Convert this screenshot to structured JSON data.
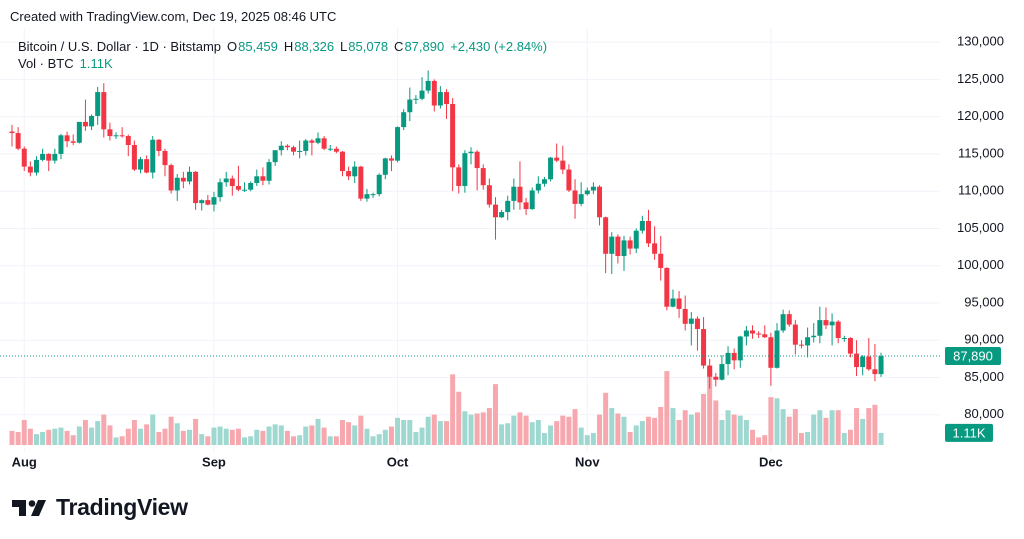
{
  "watermark": "Created with TradingView.com, Dec 19, 2025 08:46 UTC",
  "legend": {
    "symbol": "Bitcoin / U.S. Dollar · 1D · Bitstamp",
    "fields": [
      {
        "key": "O",
        "value": "85,459"
      },
      {
        "key": "H",
        "value": "88,326"
      },
      {
        "key": "L",
        "value": "85,078"
      },
      {
        "key": "C",
        "value": "87,890"
      }
    ],
    "change": "+2,430 (+2.84%)",
    "volume_label": "Vol · BTC",
    "volume_value": "1.11K"
  },
  "logo": "TradingView",
  "chart_data": {
    "type": "candlestick",
    "up_color": "#089981",
    "down_color": "#f23645",
    "volume_up_color": "#9fd8d0",
    "volume_down_color": "#f7a8af",
    "grid": true,
    "ylim": [
      75000,
      131900
    ],
    "yticks": [
      {
        "value": 130000,
        "label": "130,000"
      },
      {
        "value": 125000,
        "label": "125,000"
      },
      {
        "value": 120000,
        "label": "120,000"
      },
      {
        "value": 115000,
        "label": "115,000"
      },
      {
        "value": 110000,
        "label": "110,000"
      },
      {
        "value": 105000,
        "label": "105,000"
      },
      {
        "value": 100000,
        "label": "100,000"
      },
      {
        "value": 95000,
        "label": "95,000"
      },
      {
        "value": 90000,
        "label": "90,000"
      },
      {
        "value": 85000,
        "label": "85,000"
      },
      {
        "value": 80000,
        "label": "80,000"
      }
    ],
    "last_price": {
      "value": 87890,
      "label": "87,890"
    },
    "last_volume": {
      "value": 1110,
      "label": "1.11K"
    },
    "categories": [
      null,
      null,
      "Aug",
      null,
      null,
      null,
      null,
      null,
      null,
      null,
      null,
      null,
      null,
      null,
      null,
      null,
      null,
      null,
      null,
      null,
      null,
      null,
      null,
      null,
      null,
      null,
      null,
      null,
      null,
      null,
      null,
      null,
      null,
      "Sep",
      null,
      null,
      null,
      null,
      null,
      null,
      null,
      null,
      null,
      null,
      null,
      null,
      null,
      null,
      null,
      null,
      null,
      null,
      null,
      null,
      null,
      null,
      null,
      null,
      null,
      null,
      null,
      null,
      null,
      "Oct",
      null,
      null,
      null,
      null,
      null,
      null,
      null,
      null,
      null,
      null,
      null,
      null,
      null,
      null,
      null,
      null,
      null,
      null,
      null,
      null,
      null,
      null,
      null,
      null,
      null,
      null,
      null,
      null,
      null,
      null,
      "Nov",
      null,
      null,
      null,
      null,
      null,
      null,
      null,
      null,
      null,
      null,
      null,
      null,
      null,
      null,
      null,
      null,
      null,
      null,
      null,
      null,
      null,
      null,
      null,
      null,
      null,
      null,
      null,
      null,
      null,
      "Dec",
      null,
      null,
      null,
      null,
      null,
      null,
      null,
      null,
      null,
      null,
      null,
      null,
      null,
      null,
      null,
      null,
      null,
      null
    ],
    "ohlc": [
      [
        118000,
        118900,
        116000,
        117800
      ],
      [
        117800,
        118600,
        115500,
        115700
      ],
      [
        115700,
        116000,
        112700,
        113300
      ],
      [
        113300,
        114000,
        112000,
        112500
      ],
      [
        112500,
        114700,
        112100,
        114200
      ],
      [
        114200,
        115700,
        114000,
        115000
      ],
      [
        115000,
        115100,
        112700,
        114100
      ],
      [
        114100,
        115700,
        113700,
        115000
      ],
      [
        115000,
        117700,
        114300,
        117500
      ],
      [
        117500,
        118000,
        115900,
        116700
      ],
      [
        116700,
        117600,
        116200,
        116500
      ],
      [
        116500,
        119300,
        116400,
        119300
      ],
      [
        119300,
        122300,
        118100,
        118700
      ],
      [
        118700,
        120300,
        118200,
        120100
      ],
      [
        120100,
        124000,
        118900,
        123300
      ],
      [
        123300,
        124500,
        117200,
        118300
      ],
      [
        118300,
        119200,
        116800,
        117400
      ],
      [
        117400,
        117900,
        117000,
        117500
      ],
      [
        117500,
        118600,
        117200,
        117400
      ],
      [
        117400,
        117600,
        114700,
        116200
      ],
      [
        116200,
        116800,
        112700,
        112900
      ],
      [
        112900,
        114600,
        112400,
        114300
      ],
      [
        114300,
        114800,
        112400,
        112500
      ],
      [
        112500,
        117400,
        111700,
        116900
      ],
      [
        116900,
        117000,
        114700,
        115400
      ],
      [
        115400,
        115700,
        112000,
        113500
      ],
      [
        113500,
        113700,
        109700,
        110100
      ],
      [
        110100,
        112300,
        108700,
        111800
      ],
      [
        111800,
        112600,
        110400,
        111300
      ],
      [
        111300,
        113300,
        110900,
        112600
      ],
      [
        112600,
        112700,
        107500,
        108400
      ],
      [
        108400,
        108900,
        107400,
        108800
      ],
      [
        108800,
        109500,
        108100,
        108200
      ],
      [
        108200,
        109900,
        107300,
        109200
      ],
      [
        109200,
        111700,
        108600,
        111200
      ],
      [
        111200,
        112600,
        110600,
        111700
      ],
      [
        111700,
        112100,
        109400,
        110700
      ],
      [
        110700,
        113400,
        110000,
        110200
      ],
      [
        110200,
        111200,
        109900,
        110200
      ],
      [
        110200,
        111300,
        110000,
        111100
      ],
      [
        111100,
        112900,
        110700,
        112000
      ],
      [
        112000,
        113200,
        110800,
        111400
      ],
      [
        111400,
        114300,
        110900,
        113900
      ],
      [
        113900,
        115500,
        113400,
        115500
      ],
      [
        115500,
        116700,
        114800,
        116100
      ],
      [
        116100,
        116300,
        115500,
        115900
      ],
      [
        115900,
        116100,
        114800,
        115300
      ],
      [
        115300,
        116800,
        114400,
        115400
      ],
      [
        115400,
        117000,
        114800,
        116800
      ],
      [
        116800,
        117000,
        114800,
        116500
      ],
      [
        116500,
        117900,
        116300,
        117100
      ],
      [
        117100,
        117400,
        115500,
        115700
      ],
      [
        115700,
        116200,
        115400,
        115700
      ],
      [
        115700,
        116000,
        115100,
        115300
      ],
      [
        115300,
        115400,
        112000,
        112700
      ],
      [
        112700,
        113300,
        111500,
        112000
      ],
      [
        112000,
        114000,
        111100,
        113300
      ],
      [
        113300,
        113400,
        108700,
        109000
      ],
      [
        109000,
        110300,
        108600,
        109600
      ],
      [
        109600,
        109800,
        109100,
        109600
      ],
      [
        109600,
        112400,
        109300,
        112200
      ],
      [
        112200,
        114500,
        111600,
        114400
      ],
      [
        114400,
        114800,
        112700,
        114100
      ],
      [
        114100,
        118700,
        113900,
        118600
      ],
      [
        118600,
        121000,
        118200,
        120600
      ],
      [
        120600,
        123900,
        119400,
        122300
      ],
      [
        122300,
        122900,
        121700,
        122400
      ],
      [
        122400,
        125300,
        122200,
        123500
      ],
      [
        123500,
        126200,
        123100,
        124800
      ],
      [
        124800,
        125000,
        120700,
        121500
      ],
      [
        121500,
        124100,
        121100,
        123300
      ],
      [
        123300,
        123700,
        119700,
        121700
      ],
      [
        121700,
        122500,
        110000,
        113200
      ],
      [
        113200,
        113600,
        109700,
        110700
      ],
      [
        110700,
        115500,
        109800,
        115100
      ],
      [
        115100,
        115900,
        113600,
        115300
      ],
      [
        115300,
        115500,
        110100,
        113100
      ],
      [
        113100,
        113600,
        110200,
        110800
      ],
      [
        110800,
        111700,
        107800,
        108200
      ],
      [
        108200,
        109200,
        103500,
        106500
      ],
      [
        106500,
        107500,
        106400,
        107200
      ],
      [
        107200,
        109400,
        106100,
        108700
      ],
      [
        108700,
        111700,
        107500,
        110600
      ],
      [
        110600,
        114000,
        107500,
        108500
      ],
      [
        108500,
        109100,
        106800,
        107600
      ],
      [
        107600,
        110500,
        107500,
        110100
      ],
      [
        110100,
        112000,
        109700,
        111000
      ],
      [
        111000,
        111900,
        110600,
        111600
      ],
      [
        111600,
        114600,
        111300,
        114500
      ],
      [
        114500,
        116400,
        113900,
        114100
      ],
      [
        114100,
        116100,
        112300,
        112900
      ],
      [
        112900,
        113600,
        109900,
        110100
      ],
      [
        110100,
        111600,
        106300,
        108300
      ],
      [
        108300,
        111200,
        108000,
        109600
      ],
      [
        109600,
        110500,
        109400,
        110100
      ],
      [
        110100,
        111200,
        109600,
        110600
      ],
      [
        110600,
        110800,
        105400,
        106500
      ],
      [
        106500,
        106600,
        99000,
        101600
      ],
      [
        101600,
        104500,
        98900,
        103900
      ],
      [
        103900,
        104200,
        100300,
        101300
      ],
      [
        101300,
        104000,
        99300,
        103400
      ],
      [
        103400,
        103900,
        101500,
        102300
      ],
      [
        102300,
        105000,
        101700,
        104700
      ],
      [
        104700,
        106700,
        104300,
        106000
      ],
      [
        106000,
        107500,
        102500,
        103000
      ],
      [
        103000,
        105300,
        100800,
        101600
      ],
      [
        101600,
        104000,
        98000,
        99700
      ],
      [
        99700,
        99800,
        94000,
        94500
      ],
      [
        94500,
        96800,
        94400,
        95600
      ],
      [
        95600,
        96600,
        93000,
        94200
      ],
      [
        94200,
        96000,
        91300,
        92200
      ],
      [
        92200,
        93800,
        89300,
        92900
      ],
      [
        92900,
        93200,
        88600,
        91500
      ],
      [
        91500,
        93100,
        86200,
        86600
      ],
      [
        86600,
        87500,
        83500,
        85100
      ],
      [
        85100,
        85600,
        83800,
        84700
      ],
      [
        84700,
        88000,
        84600,
        86800
      ],
      [
        86800,
        89200,
        85300,
        88300
      ],
      [
        88300,
        88900,
        86100,
        87300
      ],
      [
        87300,
        90600,
        86300,
        90500
      ],
      [
        90500,
        91900,
        89300,
        91300
      ],
      [
        91300,
        92000,
        90200,
        90900
      ],
      [
        90900,
        91200,
        90300,
        90800
      ],
      [
        90800,
        92000,
        90300,
        90400
      ],
      [
        90400,
        91000,
        83900,
        86300
      ],
      [
        86300,
        92300,
        86200,
        91300
      ],
      [
        91300,
        94100,
        91000,
        93500
      ],
      [
        93500,
        94000,
        91800,
        92100
      ],
      [
        92100,
        92700,
        88100,
        89400
      ],
      [
        89400,
        90000,
        88900,
        89300
      ],
      [
        89300,
        91700,
        87700,
        90400
      ],
      [
        90400,
        92300,
        89700,
        90600
      ],
      [
        90600,
        94500,
        89600,
        92700
      ],
      [
        92700,
        94400,
        91500,
        92000
      ],
      [
        92000,
        93600,
        89300,
        92500
      ],
      [
        92500,
        92700,
        89600,
        90300
      ],
      [
        90300,
        90600,
        89800,
        90300
      ],
      [
        90300,
        90400,
        87700,
        88200
      ],
      [
        88200,
        90000,
        85200,
        86400
      ],
      [
        86400,
        88000,
        85300,
        87800
      ],
      [
        87800,
        90300,
        85900,
        86100
      ],
      [
        86100,
        89500,
        84500,
        85459
      ],
      [
        85459,
        88326,
        85078,
        87890
      ]
    ],
    "volume": [
      1300,
      1200,
      2300,
      1500,
      1000,
      1200,
      1400,
      1500,
      1600,
      1300,
      900,
      1700,
      2300,
      1600,
      2200,
      2800,
      1800,
      700,
      800,
      1500,
      2300,
      1500,
      1900,
      2800,
      1200,
      1500,
      2600,
      2000,
      1300,
      1400,
      2400,
      1000,
      800,
      1600,
      1700,
      1500,
      1400,
      1500,
      700,
      800,
      1400,
      1300,
      1700,
      1900,
      1800,
      1300,
      800,
      900,
      1700,
      1800,
      2400,
      1600,
      800,
      800,
      2300,
      2100,
      1800,
      2700,
      1500,
      800,
      1000,
      1400,
      1700,
      2500,
      2300,
      2300,
      1200,
      1600,
      2600,
      2800,
      2200,
      2200,
      6500,
      4900,
      3100,
      2800,
      2900,
      3000,
      3400,
      5600,
      1900,
      2000,
      2700,
      3000,
      2700,
      2100,
      2300,
      1100,
      1800,
      2200,
      2700,
      2600,
      3300,
      1600,
      900,
      1100,
      2800,
      4800,
      3400,
      2900,
      2600,
      1200,
      1800,
      2200,
      2600,
      2500,
      3500,
      6800,
      3400,
      2300,
      3200,
      2800,
      3000,
      4700,
      7100,
      4100,
      2300,
      3200,
      2800,
      2700,
      2300,
      1400,
      700,
      900,
      4400,
      4300,
      3300,
      2600,
      3300,
      1100,
      1200,
      2800,
      3200,
      2500,
      3200,
      3200,
      1100,
      1400,
      3400,
      2400,
      3400,
      3700,
      1110
    ]
  }
}
